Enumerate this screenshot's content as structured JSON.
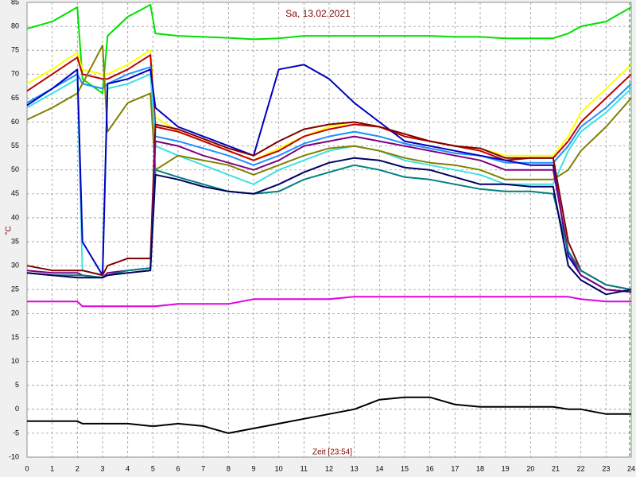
{
  "chart_data": {
    "type": "line",
    "title": "Sa, 13.02.2021",
    "x_label": "Zeit [23:54]",
    "y_label": "°C",
    "x": [
      0,
      1,
      2,
      2.2,
      3,
      3.2,
      4,
      4.9,
      5.1,
      6,
      7,
      8,
      9,
      10,
      11,
      12,
      13,
      14,
      15,
      16,
      17,
      18,
      19,
      20,
      20.9,
      21.5,
      22,
      23,
      24
    ],
    "xlim": [
      0,
      24
    ],
    "xticks": [
      0,
      1,
      2,
      3,
      4,
      5,
      6,
      7,
      8,
      9,
      10,
      11,
      12,
      13,
      14,
      15,
      16,
      17,
      18,
      19,
      20,
      21,
      22,
      23,
      24
    ],
    "ylim": [
      -10,
      85
    ],
    "yticks": [
      -10,
      -5,
      0,
      5,
      10,
      15,
      20,
      25,
      30,
      35,
      40,
      45,
      50,
      55,
      60,
      65,
      70,
      75,
      80,
      85
    ],
    "grid": true,
    "series": [
      {
        "color": "#00e000",
        "values": [
          79.5,
          81,
          84,
          69,
          66,
          78,
          82,
          84.5,
          78.5,
          78,
          77.8,
          77.6,
          77.3,
          77.5,
          78,
          78,
          78,
          78,
          78,
          78,
          77.8,
          77.8,
          77.5,
          77.5,
          77.5,
          78.5,
          80,
          81,
          84
        ]
      },
      {
        "color": "#ffff00",
        "values": [
          68,
          71,
          74.5,
          71,
          70,
          70,
          72,
          75,
          61,
          58,
          56,
          54,
          52,
          54.5,
          57,
          59,
          60,
          59,
          57,
          56,
          55,
          54.5,
          53,
          53,
          53,
          57,
          62,
          67,
          72
        ]
      },
      {
        "color": "#c00000",
        "values": [
          66.5,
          70,
          73.5,
          70,
          69,
          69,
          71,
          74,
          59,
          58,
          56,
          54,
          52,
          54,
          57,
          58.5,
          59.5,
          59,
          57,
          56,
          55,
          54,
          52,
          52.5,
          52.5,
          56,
          60,
          65,
          70
        ]
      },
      {
        "color": "#1e90ff",
        "values": [
          64,
          67,
          70,
          68,
          67,
          68,
          70,
          71.5,
          57,
          56,
          54.5,
          53,
          51,
          53,
          55.5,
          57,
          58,
          57,
          55.5,
          54.5,
          53.5,
          53,
          51.5,
          51.5,
          51.5,
          55,
          59,
          63,
          68
        ]
      },
      {
        "color": "#40e0e0",
        "values": [
          63,
          66,
          69,
          29,
          28,
          67,
          68,
          70,
          55,
          53,
          51,
          49,
          47,
          50,
          52,
          54,
          55,
          54,
          52,
          51,
          50,
          49,
          47,
          47,
          47,
          54,
          58,
          62,
          67
        ]
      },
      {
        "color": "#808000",
        "values": [
          60.5,
          63,
          66,
          68,
          76,
          58,
          64,
          66,
          50,
          53,
          52,
          51,
          49,
          51,
          53,
          54.5,
          55,
          54,
          52.5,
          51.5,
          51,
          50,
          48,
          48,
          48,
          50,
          54,
          59,
          65
        ]
      },
      {
        "color": "#0000c0",
        "values": [
          63.5,
          67,
          71,
          35,
          28,
          68,
          69,
          71,
          63,
          59,
          57,
          55,
          53,
          71,
          72,
          69,
          64,
          60,
          56,
          55,
          54,
          53,
          52,
          51,
          51,
          32,
          28,
          25,
          24.5
        ]
      },
      {
        "color": "#800000",
        "values": [
          30,
          29,
          29,
          29,
          28,
          30,
          31.5,
          31.5,
          59.5,
          58.5,
          56.5,
          54.5,
          53,
          56,
          58.5,
          59.5,
          60,
          59,
          57.5,
          56,
          55,
          54.5,
          52.5,
          52.5,
          52.5,
          35,
          29,
          26,
          25
        ]
      },
      {
        "color": "#800080",
        "values": [
          29,
          28.5,
          28.5,
          28,
          27.5,
          28.5,
          29,
          29.5,
          56,
          55,
          53,
          51.5,
          50,
          52,
          55,
          56,
          57,
          56,
          55,
          54,
          53,
          52,
          50,
          50,
          50,
          33,
          28,
          25,
          24.5
        ]
      },
      {
        "color": "#008080",
        "values": [
          28.5,
          28,
          28,
          28,
          27.5,
          28,
          29,
          29.5,
          50,
          48.5,
          47,
          45.5,
          45,
          45.5,
          48,
          49.5,
          51,
          50,
          48.5,
          48,
          47,
          46,
          45.5,
          45.5,
          45,
          33,
          29,
          26,
          25
        ]
      },
      {
        "color": "#000060",
        "values": [
          28.5,
          28,
          27.5,
          27.5,
          27.5,
          28,
          28.5,
          29,
          49,
          48,
          46.5,
          45.5,
          45,
          47,
          49.5,
          51.5,
          52.5,
          52,
          50.5,
          50,
          48.5,
          47,
          47,
          46.5,
          46.5,
          30,
          27,
          24,
          25
        ]
      },
      {
        "color": "#e000e0",
        "values": [
          22.5,
          22.5,
          22.5,
          21.5,
          21.5,
          21.5,
          21.5,
          21.5,
          21.5,
          22,
          22,
          22,
          23,
          23,
          23,
          23,
          23.5,
          23.5,
          23.5,
          23.5,
          23.5,
          23.5,
          23.5,
          23.5,
          23.5,
          23.5,
          23,
          22.5,
          22.5
        ]
      },
      {
        "color": "#000000",
        "values": [
          -2.5,
          -2.5,
          -2.5,
          -3,
          -3,
          -3,
          -3,
          -3.5,
          -3.5,
          -3,
          -3.5,
          -5,
          -4,
          -3,
          -2,
          -1,
          0,
          2,
          2.5,
          2.5,
          1,
          0.5,
          0.5,
          0.5,
          0.5,
          0,
          0,
          -1,
          -1
        ]
      }
    ]
  }
}
